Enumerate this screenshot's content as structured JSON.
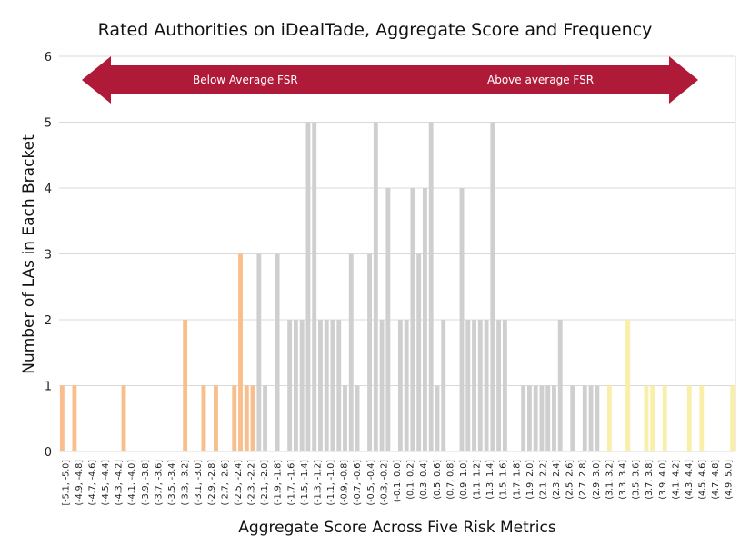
{
  "chart_data": {
    "type": "bar",
    "title": "Rated Authorities on iDealTade, Aggregate Score and Frequency",
    "xlabel": "Aggregate Score Across Five Risk Metrics",
    "ylabel": "Number of LAs in Each Bracket",
    "ylim": [
      0,
      6
    ],
    "yticks": [
      0,
      1,
      2,
      3,
      4,
      5,
      6
    ],
    "grid": true,
    "x_tick_labels": [
      "[-5.1, -5.0]",
      "(-4.9, -4.8]",
      "(-4.7, -4.6]",
      "(-4.5, -4.4]",
      "(-4.3, -4.2]",
      "(-4.1, -4.0]",
      "(-3.9, -3.8]",
      "(-3.7, -3.6]",
      "(-3.5, -3.4]",
      "(-3.3, -3.2]",
      "(-3.1, -3.0]",
      "(-2.9, -2.8]",
      "(-2.7, -2.6]",
      "(-2.5, -2.4]",
      "(-2.3, -2.2]",
      "(-2.1, -2.0]",
      "(-1.9, -1.8]",
      "(-1.7, -1.6]",
      "(-1.5, -1.4]",
      "(-1.3, -1.2]",
      "(-1.1, -1.0]",
      "(-0.9, -0.8]",
      "(-0.7, -0.6]",
      "(-0.5, -0.4]",
      "(-0.3, -0.2]",
      "(-0.1, 0.0]",
      "(0.1, 0.2]",
      "(0.3, 0.4]",
      "(0.5, 0.6]",
      "(0.7, 0.8]",
      "(0.9, 1.0]",
      "(1.1, 1.2]",
      "(1.3, 1.4]",
      "(1.5, 1.6]",
      "(1.7, 1.8]",
      "(1.9, 2.0]",
      "(2.1, 2.2]",
      "(2.3, 2.4]",
      "(2.5, 2.6]",
      "(2.7, 2.8]",
      "(2.9, 3.0]",
      "(3.1, 3.2]",
      "(3.3, 3.4]",
      "(3.5, 3.6]",
      "(3.7, 3.8]",
      "(3.9, 4.0]",
      "(4.1, 4.2]",
      "(4.3, 4.4]",
      "(4.5, 4.6]",
      "(4.7, 4.8]",
      "(4.9, 5.0]"
    ],
    "values": [
      1,
      0,
      1,
      0,
      0,
      0,
      0,
      0,
      0,
      0,
      1,
      0,
      0,
      0,
      0,
      0,
      0,
      0,
      0,
      0,
      2,
      0,
      0,
      1,
      0,
      1,
      0,
      0,
      1,
      3,
      1,
      1,
      3,
      1,
      0,
      3,
      0,
      2,
      2,
      2,
      5,
      5,
      2,
      2,
      2,
      2,
      1,
      3,
      1,
      0,
      3,
      5,
      2,
      4,
      0,
      2,
      2,
      4,
      3,
      4,
      5,
      1,
      2,
      0,
      0,
      4,
      2,
      2,
      2,
      2,
      5,
      2,
      2,
      0,
      0,
      1,
      1,
      1,
      1,
      1,
      1,
      2,
      0,
      1,
      0,
      1,
      1,
      1,
      0,
      1,
      0,
      0,
      2,
      0,
      0,
      1,
      1,
      0,
      1,
      0,
      0,
      0,
      1,
      0,
      1,
      0,
      0,
      0,
      0,
      1
    ],
    "colors": {
      "below_average": "#f8bf8c",
      "middle": "#cfcfcf",
      "above_average": "#f9efa8",
      "arrow": "#b01a39",
      "grid": "#d9d9d9"
    },
    "color_groups": {
      "below_end_index": 31,
      "middle_end_index": 87
    },
    "annotations": {
      "arrow_left_label": "Below Average FSR",
      "arrow_right_label": "Above average FSR"
    }
  }
}
